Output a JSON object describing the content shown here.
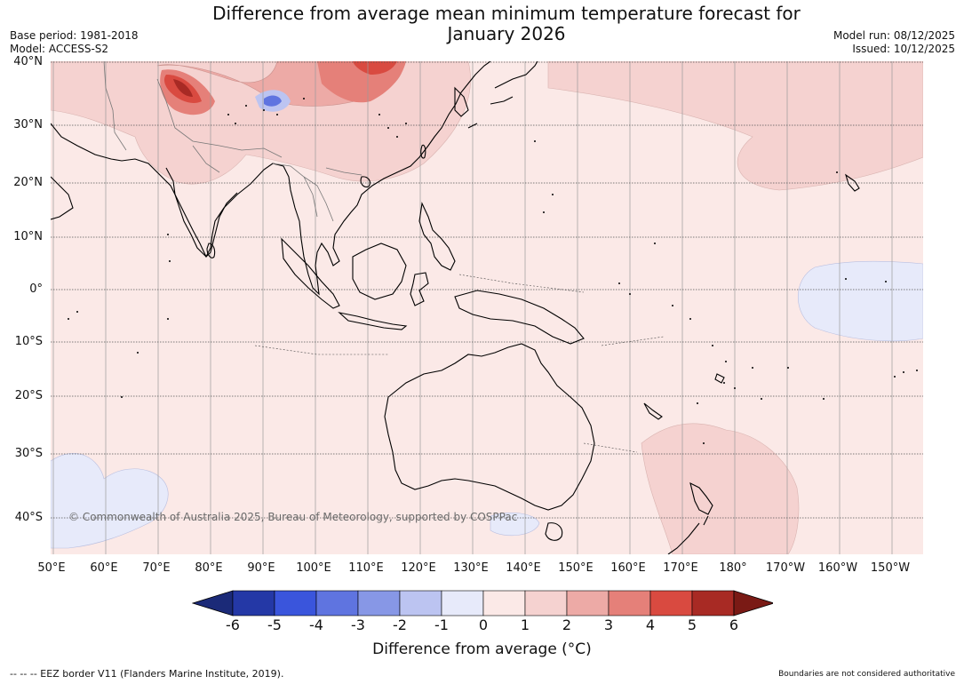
{
  "title": "Difference from average mean minimum temperature forecast for January 2026",
  "meta_left": {
    "base_period": "Base period: 1981-2018",
    "model": "Model: ACCESS-S2"
  },
  "meta_right": {
    "model_run": "Model run: 08/12/2025",
    "issued": "Issued: 10/12/2025"
  },
  "latitude_labels": [
    "40°N",
    "30°N",
    "20°N",
    "10°N",
    "0°",
    "10°S",
    "20°S",
    "30°S",
    "40°S"
  ],
  "longitude_labels": [
    "50°E",
    "60°E",
    "70°E",
    "80°E",
    "90°E",
    "100°E",
    "110°E",
    "120°E",
    "130°E",
    "140°E",
    "150°E",
    "160°E",
    "170°E",
    "180°",
    "170°W",
    "160°W",
    "150°W"
  ],
  "copyright": "© Commonwealth of Australia 2025, Bureau of Meteorology, supported by COSPPac",
  "colorbar": {
    "title": "Difference from average (°C)",
    "ticks": [
      "-6",
      "-5",
      "-4",
      "-3",
      "-2",
      "-1",
      "0",
      "1",
      "2",
      "3",
      "4",
      "5",
      "6"
    ],
    "colors": [
      "#2438a6",
      "#3a55dc",
      "#5f74e0",
      "#8797e6",
      "#bcc4f1",
      "#e7eafa",
      "#fbe9e7",
      "#f5d2d0",
      "#edaaa6",
      "#e58079",
      "#d94a40",
      "#a82a24"
    ],
    "under_color": "#1b2a78",
    "over_color": "#7a1a15"
  },
  "footer_left": "--  --  -- EEZ border V11 (Flanders Marine Institute, 2019).",
  "footer_right": "Boundaries are not considered authoritative"
}
